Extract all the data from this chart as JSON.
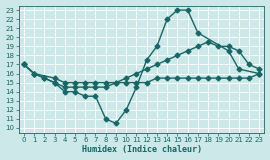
{
  "bg_color": "#cce8e8",
  "grid_color": "#ffffff",
  "line_color": "#1a6666",
  "markersize": 2.5,
  "linewidth": 1.0,
  "xlabel": "Humidex (Indice chaleur)",
  "xlim": [
    -0.5,
    23.5
  ],
  "ylim": [
    9.5,
    23.5
  ],
  "xticks": [
    0,
    1,
    2,
    3,
    4,
    5,
    6,
    7,
    8,
    9,
    10,
    11,
    12,
    13,
    14,
    15,
    16,
    17,
    18,
    19,
    20,
    21,
    22,
    23
  ],
  "yticks": [
    10,
    11,
    12,
    13,
    14,
    15,
    16,
    17,
    18,
    19,
    20,
    21,
    22,
    23
  ],
  "line1_x": [
    0,
    1,
    2,
    3,
    4,
    5,
    6,
    7,
    8,
    9,
    10,
    11,
    12,
    13,
    14,
    15,
    16,
    17,
    20,
    21,
    23
  ],
  "line1_y": [
    17,
    16,
    15.5,
    15,
    14,
    14,
    13.5,
    13.5,
    11,
    10.5,
    12,
    14.5,
    17.5,
    19,
    22,
    23,
    23,
    20.5,
    18.5,
    16.5,
    16
  ],
  "line2_x": [
    0,
    1,
    3,
    4,
    5,
    6,
    7,
    8,
    9,
    10,
    11,
    12,
    13,
    14,
    15,
    16,
    17,
    18,
    19,
    20,
    21,
    22,
    23
  ],
  "line2_y": [
    17,
    16,
    15.5,
    15,
    15,
    15,
    15,
    15,
    15,
    15,
    15,
    15,
    15.5,
    15.5,
    15.5,
    15.5,
    15.5,
    15.5,
    15.5,
    15.5,
    15.5,
    15.5,
    16
  ],
  "line3_x": [
    0,
    1,
    2,
    3,
    4,
    5,
    6,
    7,
    8,
    9,
    10,
    11,
    12,
    13,
    14,
    15,
    16,
    17,
    18,
    19,
    20,
    21,
    22,
    23
  ],
  "line3_y": [
    17,
    16,
    15.5,
    15,
    14.5,
    14.5,
    14.5,
    14.5,
    14.5,
    15,
    15.5,
    16,
    16.5,
    17,
    17.5,
    18,
    18.5,
    19,
    19.5,
    19,
    19,
    18.5,
    17,
    16.5
  ]
}
